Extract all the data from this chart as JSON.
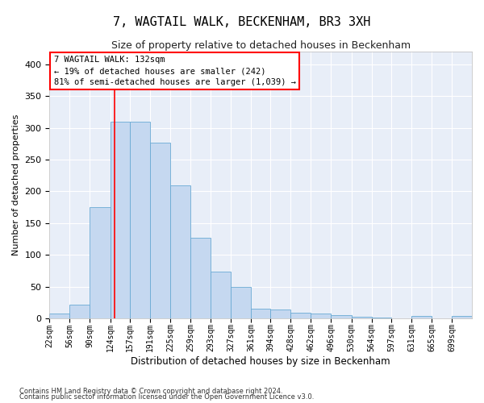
{
  "title": "7, WAGTAIL WALK, BECKENHAM, BR3 3XH",
  "subtitle": "Size of property relative to detached houses in Beckenham",
  "xlabel": "Distribution of detached houses by size in Beckenham",
  "ylabel": "Number of detached properties",
  "bin_labels": [
    "22sqm",
    "56sqm",
    "90sqm",
    "124sqm",
    "157sqm",
    "191sqm",
    "225sqm",
    "259sqm",
    "293sqm",
    "327sqm",
    "361sqm",
    "394sqm",
    "428sqm",
    "462sqm",
    "496sqm",
    "530sqm",
    "564sqm",
    "597sqm",
    "631sqm",
    "665sqm",
    "699sqm"
  ],
  "bin_edges": [
    22,
    56,
    90,
    124,
    157,
    191,
    225,
    259,
    293,
    327,
    361,
    394,
    428,
    462,
    496,
    530,
    564,
    597,
    631,
    665,
    699,
    733
  ],
  "bar_heights": [
    7,
    21,
    175,
    310,
    310,
    277,
    210,
    127,
    74,
    49,
    15,
    14,
    9,
    8,
    5,
    3,
    1,
    0,
    4,
    0,
    4
  ],
  "bar_color": "#c5d8f0",
  "bar_edge_color": "#6aaad4",
  "red_line_x": 132,
  "annotation_box_text": "7 WAGTAIL WALK: 132sqm\n← 19% of detached houses are smaller (242)\n81% of semi-detached houses are larger (1,039) →",
  "ylim": [
    0,
    420
  ],
  "yticks": [
    0,
    50,
    100,
    150,
    200,
    250,
    300,
    350,
    400
  ],
  "plot_bg_color": "#e8eef8",
  "footer1": "Contains HM Land Registry data © Crown copyright and database right 2024.",
  "footer2": "Contains public sector information licensed under the Open Government Licence v3.0.",
  "title_fontsize": 11,
  "subtitle_fontsize": 9,
  "ylabel_fontsize": 8,
  "xlabel_fontsize": 8.5,
  "tick_fontsize": 7,
  "annotation_fontsize": 7.5
}
